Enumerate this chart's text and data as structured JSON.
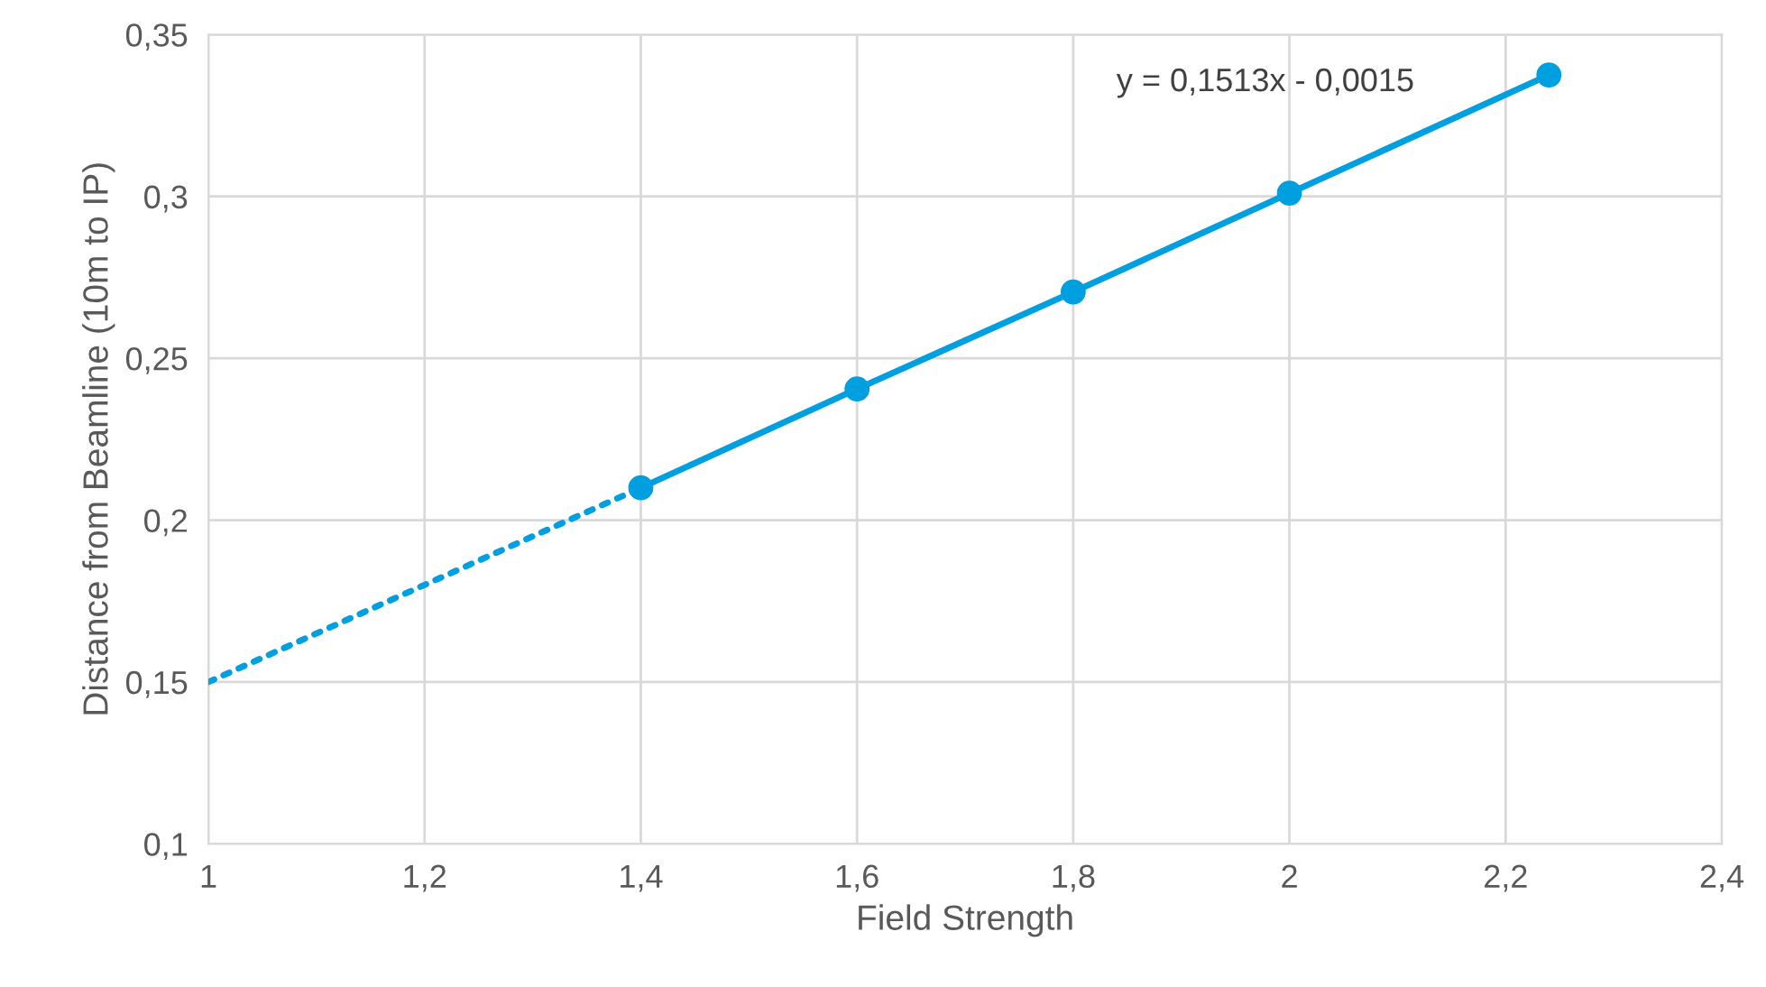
{
  "chart_data": {
    "type": "line",
    "xlabel": "Field Strength",
    "ylabel": "Distance from Beamline (10m to IP)",
    "annotations": [
      "y = 0,1513x - 0,0015"
    ],
    "series": [
      {
        "color": "#009fdf",
        "x": [
          1.4,
          1.6,
          1.8,
          2.0,
          2.24
        ],
        "values": [
          0.21,
          0.2405,
          0.2705,
          0.301,
          0.3375
        ],
        "marker": "circle",
        "line_style": "solid"
      },
      {
        "color": "#009fdf",
        "x": [
          1.0,
          1.4
        ],
        "values": [
          0.15,
          0.21
        ],
        "marker": "none",
        "line_style": "dotted"
      }
    ],
    "xlim": [
      1,
      2.4
    ],
    "ylim": [
      0.1,
      0.35
    ],
    "xticks": [
      1,
      {
        "value": 1.2,
        "label": "1,2"
      },
      {
        "value": 1.4,
        "label": "1,4"
      },
      {
        "value": 1.6,
        "label": "1,6"
      },
      {
        "value": 1.8,
        "label": "1,8"
      },
      2,
      {
        "value": 2.2,
        "label": "2,2"
      },
      {
        "value": 2.4,
        "label": "2,4"
      }
    ],
    "yticks": [
      {
        "value": 0.1,
        "label": "0,1"
      },
      {
        "value": 0.15,
        "label": "0,15"
      },
      {
        "value": 0.2,
        "label": "0,2"
      },
      {
        "value": 0.25,
        "label": "0,25"
      },
      {
        "value": 0.3,
        "label": "0,3"
      },
      {
        "value": 0.35,
        "label": "0,35"
      }
    ],
    "grid": true,
    "legend": false
  }
}
